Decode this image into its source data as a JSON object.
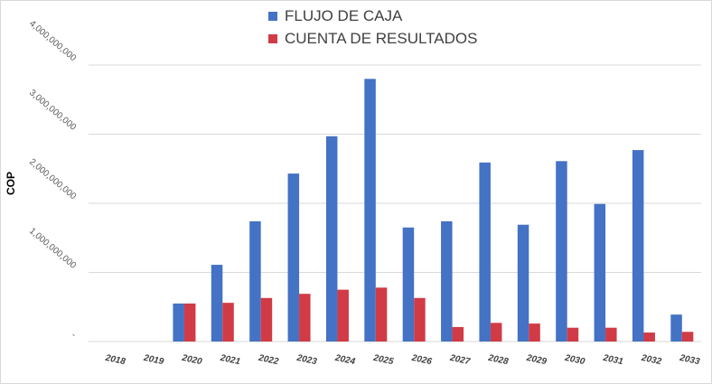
{
  "chart_data": {
    "type": "bar",
    "title": "",
    "xlabel": "",
    "ylabel": "COP",
    "ylim": [
      0,
      4000000000
    ],
    "yticks": [
      0,
      1000000000,
      2000000000,
      3000000000,
      4000000000
    ],
    "ytick_labels": [
      "-",
      "1,000,000,000",
      "2,000,000,000",
      "3,000,000,000",
      "4,000,000,000"
    ],
    "grid": true,
    "legend_position": "top",
    "categories": [
      "2018",
      "2019",
      "2020",
      "2021",
      "2022",
      "2023",
      "2024",
      "2025",
      "2026",
      "2027",
      "2028",
      "2029",
      "2030",
      "2031",
      "2032",
      "2033"
    ],
    "series": [
      {
        "name": "FLUJO DE CAJA",
        "color": "#4472c4",
        "values": [
          0,
          0,
          550000000,
          1110000000,
          1740000000,
          2430000000,
          2970000000,
          3800000000,
          1650000000,
          1740000000,
          2590000000,
          1690000000,
          2610000000,
          1990000000,
          2770000000,
          390000000
        ]
      },
      {
        "name": "CUENTA DE RESULTADOS",
        "color": "#d13b45",
        "values": [
          0,
          0,
          550000000,
          560000000,
          630000000,
          690000000,
          750000000,
          780000000,
          630000000,
          210000000,
          270000000,
          260000000,
          200000000,
          200000000,
          130000000,
          140000000
        ]
      }
    ]
  }
}
